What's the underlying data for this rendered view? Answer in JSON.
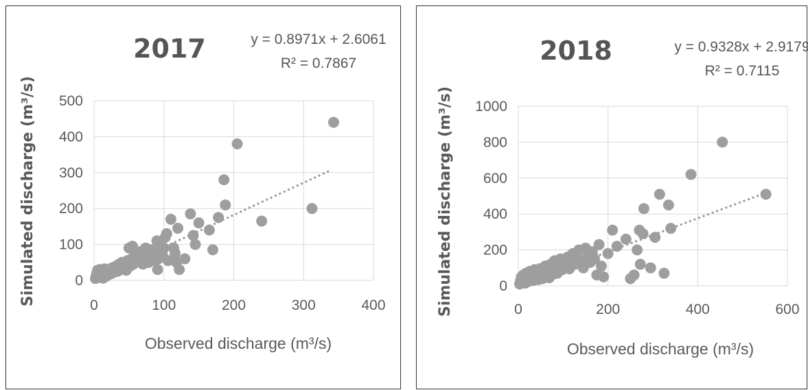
{
  "chart_data": [
    {
      "type": "scatter",
      "title": "2017",
      "xlabel": "Observed discharge (m³/s)",
      "ylabel": "Simulated discharge (m³/s)",
      "equation": "y = 0.8971x + 2.6061",
      "r_squared": "R² = 0.7867",
      "trend": {
        "slope": 0.8971,
        "intercept": 2.6061,
        "x_range": [
          0,
          340
        ]
      },
      "xlim": [
        0,
        400
      ],
      "ylim": [
        0,
        500
      ],
      "xticks": [
        "0",
        "100",
        "200",
        "300",
        "400"
      ],
      "yticks": [
        "0",
        "100",
        "200",
        "300",
        "400",
        "500"
      ],
      "grid": "vertical and horizontal",
      "marker_color": "#9e9e9e",
      "points": [
        [
          2,
          5
        ],
        [
          3,
          12
        ],
        [
          4,
          20
        ],
        [
          5,
          28
        ],
        [
          6,
          8
        ],
        [
          7,
          15
        ],
        [
          8,
          30
        ],
        [
          9,
          22
        ],
        [
          10,
          10
        ],
        [
          11,
          18
        ],
        [
          12,
          25
        ],
        [
          13,
          6
        ],
        [
          14,
          14
        ],
        [
          15,
          32
        ],
        [
          16,
          20
        ],
        [
          18,
          12
        ],
        [
          20,
          24
        ],
        [
          22,
          30
        ],
        [
          24,
          18
        ],
        [
          26,
          35
        ],
        [
          28,
          22
        ],
        [
          30,
          28
        ],
        [
          32,
          40
        ],
        [
          34,
          25
        ],
        [
          36,
          45
        ],
        [
          38,
          30
        ],
        [
          40,
          50
        ],
        [
          42,
          35
        ],
        [
          44,
          42
        ],
        [
          46,
          28
        ],
        [
          48,
          55
        ],
        [
          50,
          90
        ],
        [
          52,
          40
        ],
        [
          54,
          60
        ],
        [
          55,
          95
        ],
        [
          56,
          45
        ],
        [
          58,
          70
        ],
        [
          60,
          50
        ],
        [
          62,
          65
        ],
        [
          64,
          55
        ],
        [
          66,
          80
        ],
        [
          68,
          60
        ],
        [
          70,
          45
        ],
        [
          72,
          75
        ],
        [
          74,
          90
        ],
        [
          76,
          60
        ],
        [
          78,
          50
        ],
        [
          80,
          70
        ],
        [
          82,
          85
        ],
        [
          84,
          65
        ],
        [
          86,
          55
        ],
        [
          88,
          75
        ],
        [
          90,
          110
        ],
        [
          91,
          30
        ],
        [
          92,
          60
        ],
        [
          94,
          80
        ],
        [
          96,
          100
        ],
        [
          98,
          70
        ],
        [
          100,
          90
        ],
        [
          102,
          120
        ],
        [
          104,
          130
        ],
        [
          106,
          55
        ],
        [
          110,
          170
        ],
        [
          114,
          90
        ],
        [
          116,
          75
        ],
        [
          118,
          50
        ],
        [
          120,
          145
        ],
        [
          122,
          30
        ],
        [
          130,
          60
        ],
        [
          138,
          185
        ],
        [
          142,
          125
        ],
        [
          145,
          100
        ],
        [
          150,
          160
        ],
        [
          165,
          140
        ],
        [
          170,
          85
        ],
        [
          178,
          175
        ],
        [
          186,
          280
        ],
        [
          188,
          210
        ],
        [
          205,
          380
        ],
        [
          240,
          165
        ],
        [
          312,
          200
        ],
        [
          343,
          440
        ]
      ]
    },
    {
      "type": "scatter",
      "title": "2018",
      "xlabel": "Observed discharge (m³/s)",
      "ylabel": "Simulated discharge (m³/s)",
      "equation": "y = 0.9328x + 2.9179",
      "r_squared": "R² = 0.7115",
      "trend": {
        "slope": 0.9328,
        "intercept": 2.9179,
        "x_range": [
          0,
          550
        ]
      },
      "xlim": [
        0,
        600
      ],
      "ylim": [
        0,
        1000
      ],
      "xticks": [
        "0",
        "200",
        "400",
        "600"
      ],
      "yticks": [
        "0",
        "200",
        "400",
        "600",
        "800",
        "1000"
      ],
      "grid": "vertical and horizontal",
      "marker_color": "#9e9e9e",
      "points": [
        [
          3,
          10
        ],
        [
          5,
          30
        ],
        [
          7,
          50
        ],
        [
          9,
          20
        ],
        [
          11,
          60
        ],
        [
          13,
          40
        ],
        [
          15,
          15
        ],
        [
          17,
          70
        ],
        [
          19,
          35
        ],
        [
          21,
          55
        ],
        [
          23,
          25
        ],
        [
          25,
          80
        ],
        [
          27,
          45
        ],
        [
          30,
          65
        ],
        [
          33,
          30
        ],
        [
          36,
          90
        ],
        [
          39,
          50
        ],
        [
          42,
          75
        ],
        [
          45,
          35
        ],
        [
          48,
          95
        ],
        [
          51,
          60
        ],
        [
          54,
          40
        ],
        [
          57,
          85
        ],
        [
          60,
          110
        ],
        [
          63,
          55
        ],
        [
          66,
          75
        ],
        [
          69,
          45
        ],
        [
          72,
          120
        ],
        [
          75,
          90
        ],
        [
          78,
          65
        ],
        [
          81,
          140
        ],
        [
          84,
          100
        ],
        [
          87,
          70
        ],
        [
          90,
          120
        ],
        [
          94,
          150
        ],
        [
          98,
          90
        ],
        [
          102,
          130
        ],
        [
          106,
          110
        ],
        [
          110,
          160
        ],
        [
          114,
          95
        ],
        [
          118,
          140
        ],
        [
          122,
          180
        ],
        [
          126,
          120
        ],
        [
          130,
          160
        ],
        [
          135,
          200
        ],
        [
          140,
          140
        ],
        [
          145,
          100
        ],
        [
          150,
          210
        ],
        [
          155,
          170
        ],
        [
          160,
          130
        ],
        [
          165,
          190
        ],
        [
          170,
          150
        ],
        [
          175,
          60
        ],
        [
          180,
          230
        ],
        [
          185,
          110
        ],
        [
          190,
          50
        ],
        [
          200,
          180
        ],
        [
          210,
          310
        ],
        [
          220,
          220
        ],
        [
          240,
          260
        ],
        [
          250,
          40
        ],
        [
          258,
          60
        ],
        [
          265,
          200
        ],
        [
          270,
          310
        ],
        [
          272,
          120
        ],
        [
          278,
          290
        ],
        [
          280,
          430
        ],
        [
          295,
          100
        ],
        [
          305,
          270
        ],
        [
          315,
          510
        ],
        [
          325,
          70
        ],
        [
          335,
          450
        ],
        [
          340,
          320
        ],
        [
          385,
          620
        ],
        [
          455,
          800
        ],
        [
          552,
          510
        ]
      ]
    }
  ]
}
